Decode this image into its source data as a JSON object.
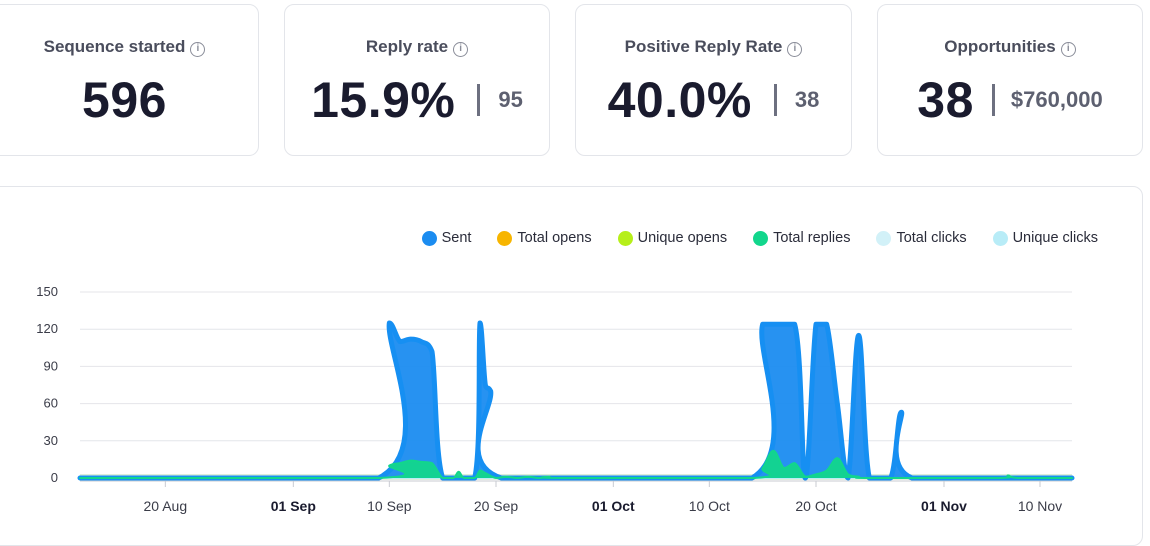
{
  "stats": {
    "sequence": {
      "title": "Sequence started",
      "value": "596"
    },
    "reply": {
      "title": "Reply rate",
      "value": "15.9%",
      "sub": "95"
    },
    "positive": {
      "title": "Positive Reply Rate",
      "value": "40.0%",
      "sub": "38"
    },
    "opps": {
      "title": "Opportunities",
      "value": "38",
      "sub": "$760,000"
    }
  },
  "icons": {
    "info": "info-icon"
  },
  "chart_data": {
    "type": "area",
    "title": "",
    "legend": [
      {
        "name": "Sent",
        "color": "#1b8cf0"
      },
      {
        "name": "Total opens",
        "color": "#f7b500"
      },
      {
        "name": "Unique opens",
        "color": "#b6ef1a"
      },
      {
        "name": "Total replies",
        "color": "#12d68c"
      },
      {
        "name": "Total clicks",
        "color": "#d2f1f8"
      },
      {
        "name": "Unique clicks",
        "color": "#b8ecf7"
      }
    ],
    "ylim": [
      0,
      150
    ],
    "yticks": [
      0,
      30,
      60,
      90,
      120,
      150
    ],
    "xlim_days": [
      0,
      93
    ],
    "xticks": [
      {
        "day": 8,
        "label": "20 Aug",
        "bold": false
      },
      {
        "day": 20,
        "label": "01 Sep",
        "bold": true
      },
      {
        "day": 29,
        "label": "10 Sep",
        "bold": false
      },
      {
        "day": 39,
        "label": "20 Sep",
        "bold": false
      },
      {
        "day": 50,
        "label": "01 Oct",
        "bold": true
      },
      {
        "day": 59,
        "label": "10 Oct",
        "bold": false
      },
      {
        "day": 69,
        "label": "20 Oct",
        "bold": false
      },
      {
        "day": 81,
        "label": "01 Nov",
        "bold": true
      },
      {
        "day": 90,
        "label": "10 Nov",
        "bold": false
      }
    ],
    "series": [
      {
        "name": "Sent",
        "color": "#1b8cf0",
        "points": [
          [
            0,
            0
          ],
          [
            28,
            0
          ],
          [
            29,
            125
          ],
          [
            30,
            110
          ],
          [
            31,
            112
          ],
          [
            32,
            110
          ],
          [
            33,
            102
          ],
          [
            34,
            0
          ],
          [
            37,
            0
          ],
          [
            37.5,
            125
          ],
          [
            38,
            75
          ],
          [
            38.5,
            70
          ],
          [
            39.5,
            0
          ],
          [
            63,
            0
          ],
          [
            64,
            124
          ],
          [
            67,
            124
          ],
          [
            68,
            0
          ],
          [
            69,
            124
          ],
          [
            70,
            124
          ],
          [
            71,
            60
          ],
          [
            72,
            0
          ],
          [
            73,
            115
          ],
          [
            74,
            0
          ],
          [
            76,
            0
          ],
          [
            77,
            53
          ],
          [
            78,
            0
          ],
          [
            93,
            0
          ]
        ]
      },
      {
        "name": "Total replies",
        "color": "#12d68c",
        "points": [
          [
            0,
            0
          ],
          [
            28,
            0
          ],
          [
            29,
            10
          ],
          [
            30,
            12
          ],
          [
            31,
            14
          ],
          [
            32,
            13
          ],
          [
            33,
            12
          ],
          [
            34,
            0
          ],
          [
            35,
            0
          ],
          [
            35.5,
            5
          ],
          [
            36,
            0
          ],
          [
            37,
            0
          ],
          [
            37.5,
            6
          ],
          [
            38,
            4
          ],
          [
            39,
            0
          ],
          [
            40,
            1
          ],
          [
            41,
            0
          ],
          [
            42,
            1
          ],
          [
            43,
            0
          ],
          [
            44,
            1
          ],
          [
            45,
            0
          ],
          [
            63,
            0
          ],
          [
            64,
            8
          ],
          [
            65,
            22
          ],
          [
            66,
            8
          ],
          [
            67,
            12
          ],
          [
            68,
            1
          ],
          [
            69,
            3
          ],
          [
            70,
            6
          ],
          [
            71,
            16
          ],
          [
            72,
            3
          ],
          [
            73,
            1
          ],
          [
            74,
            0
          ],
          [
            86,
            0
          ],
          [
            87,
            2
          ],
          [
            88,
            0
          ],
          [
            93,
            0
          ]
        ]
      },
      {
        "name": "Total opens",
        "color": "#f7b500",
        "points": [
          [
            0,
            0
          ],
          [
            93,
            0
          ]
        ]
      },
      {
        "name": "Unique opens",
        "color": "#b6ef1a",
        "points": [
          [
            0,
            0
          ],
          [
            93,
            0
          ]
        ]
      },
      {
        "name": "Total clicks",
        "color": "#d2f1f8",
        "points": [
          [
            0,
            0
          ],
          [
            93,
            0
          ]
        ]
      },
      {
        "name": "Unique clicks",
        "color": "#b8ecf7",
        "points": [
          [
            0,
            0
          ],
          [
            93,
            0
          ]
        ]
      }
    ]
  }
}
